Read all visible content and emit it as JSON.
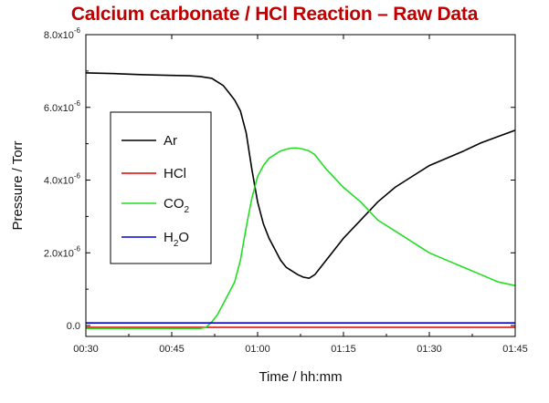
{
  "chart_data": {
    "type": "line",
    "title": "Calcium carbonate / HCl Reaction – Raw Data",
    "xlabel": "Time / hh:mm",
    "ylabel": "Pressure / Torr",
    "xlim": [
      30,
      105
    ],
    "ylim": [
      -3e-07,
      8e-06
    ],
    "x_ticks": [
      {
        "value": 30,
        "label": "00:30"
      },
      {
        "value": 45,
        "label": "00:45"
      },
      {
        "value": 60,
        "label": "01:00"
      },
      {
        "value": 75,
        "label": "01:15"
      },
      {
        "value": 90,
        "label": "01:30"
      },
      {
        "value": 105,
        "label": "01:45"
      }
    ],
    "y_ticks": [
      {
        "value": 0,
        "label": "0.0"
      },
      {
        "value": 2e-06,
        "label": "2.0x10",
        "exp": "-6"
      },
      {
        "value": 4e-06,
        "label": "4.0x10",
        "exp": "-6"
      },
      {
        "value": 6e-06,
        "label": "6.0x10",
        "exp": "-6"
      },
      {
        "value": 8e-06,
        "label": "8.0x10",
        "exp": "-6"
      }
    ],
    "grid": false,
    "legend_position": "left-middle",
    "series": [
      {
        "name": "Ar",
        "label": "Ar",
        "sub": "",
        "color": "#000000",
        "x": [
          30,
          35,
          40,
          45,
          48,
          50,
          52,
          54,
          55,
          56,
          57,
          58,
          59,
          60,
          61,
          62,
          63,
          64,
          65,
          66,
          67,
          68,
          69,
          70,
          71,
          72,
          73,
          75,
          78,
          81,
          84,
          87,
          90,
          93,
          96,
          99,
          102,
          105
        ],
        "y": [
          6.95e-06,
          6.93e-06,
          6.9e-06,
          6.88e-06,
          6.87e-06,
          6.85e-06,
          6.8e-06,
          6.6e-06,
          6.4e-06,
          6.2e-06,
          5.9e-06,
          5.3e-06,
          4.3e-06,
          3.4e-06,
          2.8e-06,
          2.4e-06,
          2.1e-06,
          1.8e-06,
          1.6e-06,
          1.5e-06,
          1.4e-06,
          1.33e-06,
          1.3e-06,
          1.4e-06,
          1.6e-06,
          1.8e-06,
          2e-06,
          2.4e-06,
          2.9e-06,
          3.4e-06,
          3.8e-06,
          4.1e-06,
          4.4e-06,
          4.6e-06,
          4.8e-06,
          5.02e-06,
          5.2e-06,
          5.37e-06
        ]
      },
      {
        "name": "HCl",
        "label": "HCl",
        "sub": "",
        "color": "#e00000",
        "x": [
          30,
          105
        ],
        "y": [
          -5e-08,
          -5e-08
        ]
      },
      {
        "name": "CO2",
        "label": "CO",
        "sub": "2",
        "color": "#22dd22",
        "x": [
          30,
          40,
          50,
          51,
          52,
          53,
          54,
          55,
          56,
          57,
          58,
          59,
          60,
          61,
          62,
          63,
          64,
          65,
          66,
          67,
          68,
          69,
          70,
          71,
          72,
          75,
          78,
          81,
          84,
          87,
          90,
          93,
          96,
          99,
          102,
          105
        ],
        "y": [
          -8e-08,
          -8e-08,
          -8e-08,
          -5e-08,
          1e-07,
          3e-07,
          6e-07,
          9e-07,
          1.2e-06,
          1.8e-06,
          2.7e-06,
          3.5e-06,
          4.1e-06,
          4.4e-06,
          4.6e-06,
          4.7e-06,
          4.8e-06,
          4.85e-06,
          4.88e-06,
          4.88e-06,
          4.85e-06,
          4.8e-06,
          4.7e-06,
          4.5e-06,
          4.3e-06,
          3.8e-06,
          3.4e-06,
          2.9e-06,
          2.6e-06,
          2.3e-06,
          2e-06,
          1.8e-06,
          1.6e-06,
          1.4e-06,
          1.2e-06,
          1.1e-06
        ]
      },
      {
        "name": "H2O",
        "label": "H",
        "sub": "2",
        "suffix": "O",
        "color": "#0000dd",
        "x": [
          30,
          105
        ],
        "y": [
          7e-08,
          7e-08
        ]
      }
    ]
  }
}
